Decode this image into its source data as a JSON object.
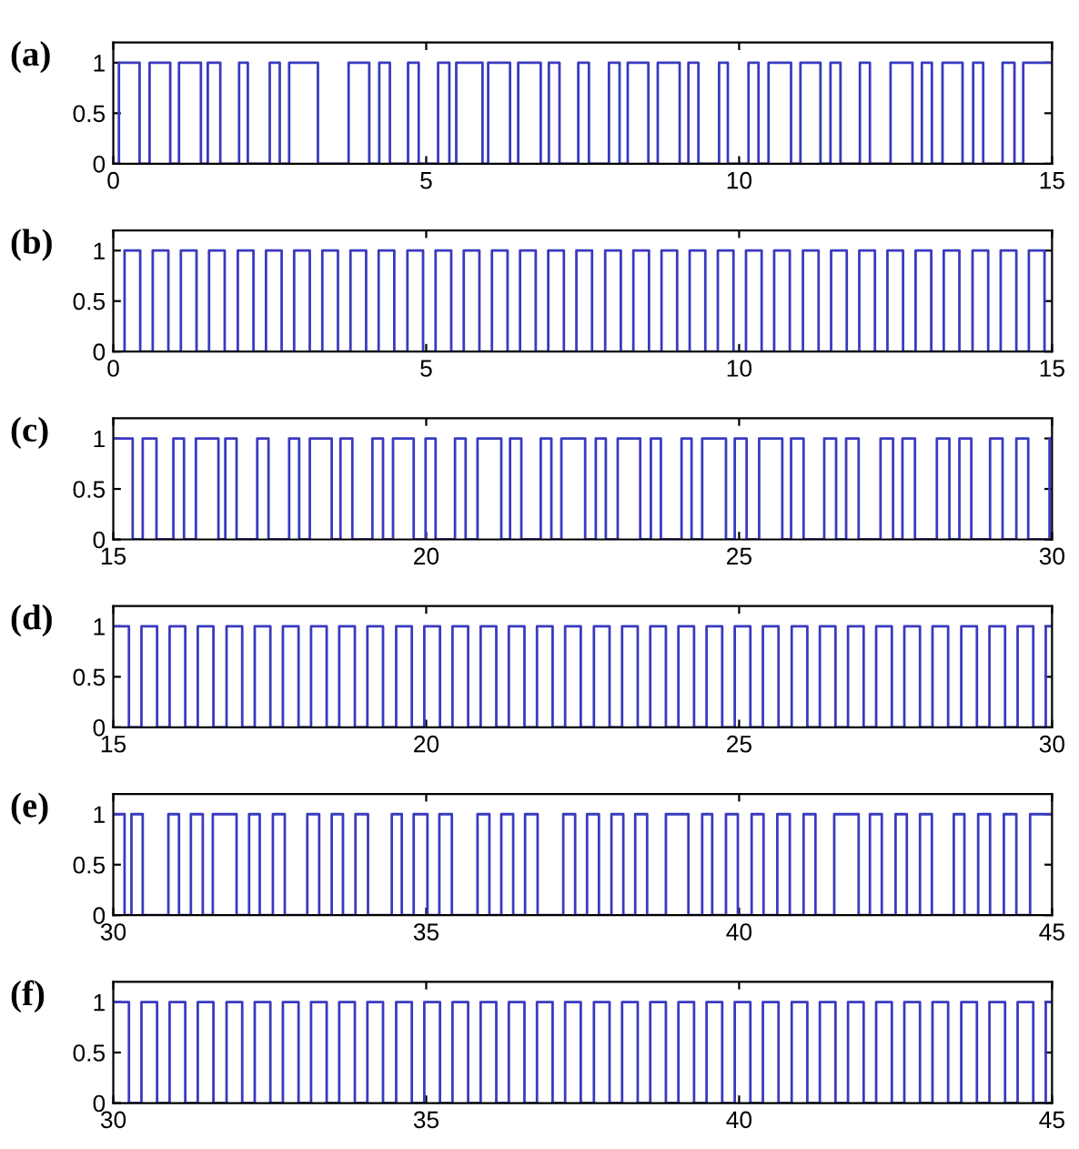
{
  "chart_data": [
    {
      "type": "step",
      "title": "(a)",
      "color": "#3a3ac0",
      "xlim": [
        0,
        15
      ],
      "ylim": [
        0,
        1.2
      ],
      "xticks": [
        0,
        5,
        10,
        15
      ],
      "yticks": [
        0,
        0.5,
        1
      ],
      "grid": false,
      "legend": false,
      "x": [
        0,
        0.09,
        0.42,
        0.58,
        0.91,
        1.05,
        1.4,
        1.51,
        1.71,
        2.01,
        2.15,
        2.5,
        2.66,
        2.81,
        3.27,
        3.76,
        4.09,
        4.25,
        4.42,
        4.71,
        4.88,
        5.19,
        5.37,
        5.48,
        5.9,
        5.99,
        6.34,
        6.47,
        6.83,
        6.96,
        7.13,
        7.43,
        7.6,
        7.92,
        8.09,
        8.22,
        8.55,
        8.7,
        9.05,
        9.19,
        9.35,
        9.68,
        9.82,
        10.15,
        10.31,
        10.47,
        10.83,
        10.98,
        11.3,
        11.46,
        11.62,
        11.93,
        12.09,
        12.42,
        12.77,
        12.92,
        13.08,
        13.25,
        13.57,
        13.74,
        13.9,
        14.21,
        14.4,
        14.54,
        15
      ],
      "values": [
        0,
        1,
        0,
        1,
        0,
        1,
        0,
        1,
        0,
        1,
        0,
        1,
        0,
        1,
        0,
        1,
        0,
        1,
        0,
        1,
        0,
        1,
        0,
        1,
        0,
        1,
        0,
        1,
        0,
        1,
        0,
        1,
        0,
        1,
        0,
        1,
        0,
        1,
        0,
        1,
        0,
        1,
        0,
        1,
        0,
        1,
        0,
        1,
        0,
        1,
        0,
        1,
        0,
        1,
        0,
        1,
        0,
        1,
        0,
        1,
        0,
        1,
        0,
        1,
        1
      ]
    },
    {
      "type": "step",
      "title": "(b)",
      "color": "#3a3ac0",
      "xlim": [
        0,
        15
      ],
      "ylim": [
        0,
        1.2
      ],
      "xticks": [
        0,
        5,
        10,
        15
      ],
      "yticks": [
        0,
        0.5,
        1
      ],
      "grid": false,
      "legend": false,
      "x": [
        0,
        0.18,
        0.43,
        0.63,
        0.88,
        1.08,
        1.33,
        1.53,
        1.78,
        1.99,
        2.24,
        2.44,
        2.69,
        2.89,
        3.14,
        3.34,
        3.59,
        3.79,
        4.04,
        4.24,
        4.49,
        4.7,
        4.95,
        5.15,
        5.4,
        5.6,
        5.85,
        6.05,
        6.3,
        6.5,
        6.75,
        6.95,
        7.2,
        7.4,
        7.65,
        7.86,
        8.11,
        8.31,
        8.56,
        8.76,
        9.01,
        9.21,
        9.46,
        9.66,
        9.91,
        10.11,
        10.36,
        10.56,
        10.81,
        11.02,
        11.27,
        11.47,
        11.72,
        11.92,
        12.17,
        12.37,
        12.62,
        12.82,
        13.07,
        13.27,
        13.52,
        13.73,
        13.98,
        14.18,
        14.43,
        14.63,
        14.88,
        15
      ],
      "values": [
        0,
        1,
        0,
        1,
        0,
        1,
        0,
        1,
        0,
        1,
        0,
        1,
        0,
        1,
        0,
        1,
        0,
        1,
        0,
        1,
        0,
        1,
        0,
        1,
        0,
        1,
        0,
        1,
        0,
        1,
        0,
        1,
        0,
        1,
        0,
        1,
        0,
        1,
        0,
        1,
        0,
        1,
        0,
        1,
        0,
        1,
        0,
        1,
        0,
        1,
        0,
        1,
        0,
        1,
        0,
        1,
        0,
        1,
        0,
        1,
        0,
        1,
        0,
        1,
        0,
        1,
        0,
        0
      ]
    },
    {
      "type": "step",
      "title": "(c)",
      "color": "#3a3ac0",
      "xlim": [
        15,
        30
      ],
      "ylim": [
        0,
        1.2
      ],
      "xticks": [
        15,
        20,
        25,
        30
      ],
      "yticks": [
        0,
        0.5,
        1
      ],
      "grid": false,
      "legend": false,
      "x": [
        15.0,
        15.31,
        15.47,
        15.69,
        15.96,
        16.13,
        16.32,
        16.68,
        16.79,
        16.97,
        17.3,
        17.48,
        17.81,
        17.97,
        18.14,
        18.49,
        18.63,
        18.82,
        19.14,
        19.31,
        19.47,
        19.8,
        19.99,
        20.15,
        20.46,
        20.63,
        20.82,
        21.2,
        21.34,
        21.52,
        21.83,
        22.0,
        22.16,
        22.54,
        22.71,
        22.87,
        23.06,
        23.42,
        23.59,
        23.75,
        24.08,
        24.24,
        24.41,
        24.79,
        24.93,
        25.12,
        25.32,
        25.69,
        25.83,
        26.03,
        26.36,
        26.55,
        26.71,
        26.91,
        27.26,
        27.46,
        27.61,
        27.81,
        28.16,
        28.36,
        28.52,
        28.71,
        29.01,
        29.21,
        29.43,
        29.62,
        29.96,
        30
      ],
      "values": [
        1,
        0,
        1,
        0,
        1,
        0,
        1,
        0,
        1,
        0,
        1,
        0,
        1,
        0,
        1,
        0,
        1,
        0,
        1,
        0,
        1,
        0,
        1,
        0,
        1,
        0,
        1,
        0,
        1,
        0,
        1,
        0,
        1,
        0,
        1,
        0,
        1,
        0,
        1,
        0,
        1,
        0,
        1,
        0,
        1,
        0,
        1,
        0,
        1,
        0,
        1,
        0,
        1,
        0,
        1,
        0,
        1,
        0,
        1,
        0,
        1,
        0,
        1,
        0,
        1,
        0,
        1,
        1
      ]
    },
    {
      "type": "step",
      "title": "(d)",
      "color": "#3a3ac0",
      "xlim": [
        15,
        30
      ],
      "ylim": [
        0,
        1.2
      ],
      "xticks": [
        15,
        20,
        25,
        30
      ],
      "yticks": [
        0,
        0.5,
        1
      ],
      "grid": false,
      "legend": false,
      "x": [
        15.0,
        15.25,
        15.45,
        15.7,
        15.9,
        16.15,
        16.35,
        16.6,
        16.81,
        17.06,
        17.26,
        17.51,
        17.71,
        17.96,
        18.16,
        18.41,
        18.61,
        18.86,
        19.06,
        19.31,
        19.52,
        19.77,
        19.97,
        20.22,
        20.42,
        20.67,
        20.87,
        21.12,
        21.32,
        21.57,
        21.77,
        22.02,
        22.22,
        22.47,
        22.68,
        22.93,
        23.13,
        23.38,
        23.58,
        23.83,
        24.03,
        24.28,
        24.48,
        24.73,
        24.93,
        25.18,
        25.38,
        25.63,
        25.84,
        26.09,
        26.29,
        26.54,
        26.74,
        26.99,
        27.19,
        27.44,
        27.64,
        27.89,
        28.09,
        28.34,
        28.55,
        28.8,
        29.0,
        29.25,
        29.45,
        29.7,
        29.9,
        30
      ],
      "values": [
        1,
        0,
        1,
        0,
        1,
        0,
        1,
        0,
        1,
        0,
        1,
        0,
        1,
        0,
        1,
        0,
        1,
        0,
        1,
        0,
        1,
        0,
        1,
        0,
        1,
        0,
        1,
        0,
        1,
        0,
        1,
        0,
        1,
        0,
        1,
        0,
        1,
        0,
        1,
        0,
        1,
        0,
        1,
        0,
        1,
        0,
        1,
        0,
        1,
        0,
        1,
        0,
        1,
        0,
        1,
        0,
        1,
        0,
        1,
        0,
        1,
        0,
        1,
        0,
        1,
        0,
        1,
        1
      ]
    },
    {
      "type": "step",
      "title": "(e)",
      "color": "#3a3ac0",
      "xlim": [
        30,
        45
      ],
      "ylim": [
        0,
        1.2
      ],
      "xticks": [
        30,
        35,
        40,
        45
      ],
      "yticks": [
        0,
        0.5,
        1
      ],
      "grid": false,
      "legend": false,
      "x": [
        30.0,
        30.18,
        30.29,
        30.47,
        30.88,
        31.05,
        31.24,
        31.43,
        31.59,
        31.97,
        32.17,
        32.34,
        32.55,
        32.74,
        33.1,
        33.29,
        33.49,
        33.67,
        33.87,
        34.07,
        34.45,
        34.61,
        34.8,
        35.02,
        35.21,
        35.41,
        35.82,
        36.01,
        36.2,
        36.39,
        36.58,
        36.78,
        37.19,
        37.38,
        37.57,
        37.76,
        37.96,
        38.15,
        38.34,
        38.53,
        38.83,
        39.19,
        39.41,
        39.57,
        39.79,
        39.98,
        40.2,
        40.39,
        40.61,
        40.81,
        41.03,
        41.22,
        41.52,
        41.91,
        42.09,
        42.28,
        42.5,
        42.68,
        42.89,
        43.08,
        43.43,
        43.6,
        43.82,
        44.01,
        44.23,
        44.43,
        44.65,
        45
      ],
      "values": [
        1,
        0,
        1,
        0,
        1,
        0,
        1,
        0,
        1,
        0,
        1,
        0,
        1,
        0,
        1,
        0,
        1,
        0,
        1,
        0,
        1,
        0,
        1,
        0,
        1,
        0,
        1,
        0,
        1,
        0,
        1,
        0,
        1,
        0,
        1,
        0,
        1,
        0,
        1,
        0,
        1,
        0,
        1,
        0,
        1,
        0,
        1,
        0,
        1,
        0,
        1,
        0,
        1,
        0,
        1,
        0,
        1,
        0,
        1,
        0,
        1,
        0,
        1,
        0,
        1,
        0,
        1,
        1
      ]
    },
    {
      "type": "step",
      "title": "(f)",
      "color": "#3a3ac0",
      "xlim": [
        30,
        45
      ],
      "ylim": [
        0,
        1.2
      ],
      "xticks": [
        30,
        35,
        40,
        45
      ],
      "yticks": [
        0,
        0.5,
        1
      ],
      "grid": false,
      "legend": false,
      "x": [
        30.0,
        30.25,
        30.45,
        30.7,
        30.9,
        31.15,
        31.35,
        31.6,
        31.81,
        32.06,
        32.26,
        32.51,
        32.71,
        32.96,
        33.16,
        33.41,
        33.61,
        33.86,
        34.06,
        34.31,
        34.52,
        34.77,
        34.97,
        35.22,
        35.42,
        35.67,
        35.87,
        36.12,
        36.32,
        36.57,
        36.77,
        37.02,
        37.22,
        37.47,
        37.68,
        37.93,
        38.13,
        38.38,
        38.58,
        38.83,
        39.03,
        39.28,
        39.48,
        39.73,
        39.93,
        40.18,
        40.38,
        40.63,
        40.84,
        41.09,
        41.29,
        41.54,
        41.74,
        41.99,
        42.19,
        42.44,
        42.64,
        42.89,
        43.09,
        43.34,
        43.55,
        43.8,
        44.0,
        44.25,
        44.45,
        44.7,
        44.9,
        45
      ],
      "values": [
        1,
        0,
        1,
        0,
        1,
        0,
        1,
        0,
        1,
        0,
        1,
        0,
        1,
        0,
        1,
        0,
        1,
        0,
        1,
        0,
        1,
        0,
        1,
        0,
        1,
        0,
        1,
        0,
        1,
        0,
        1,
        0,
        1,
        0,
        1,
        0,
        1,
        0,
        1,
        0,
        1,
        0,
        1,
        0,
        1,
        0,
        1,
        0,
        1,
        0,
        1,
        0,
        1,
        0,
        1,
        0,
        1,
        0,
        1,
        0,
        1,
        0,
        1,
        0,
        1,
        0,
        1,
        1
      ]
    }
  ]
}
